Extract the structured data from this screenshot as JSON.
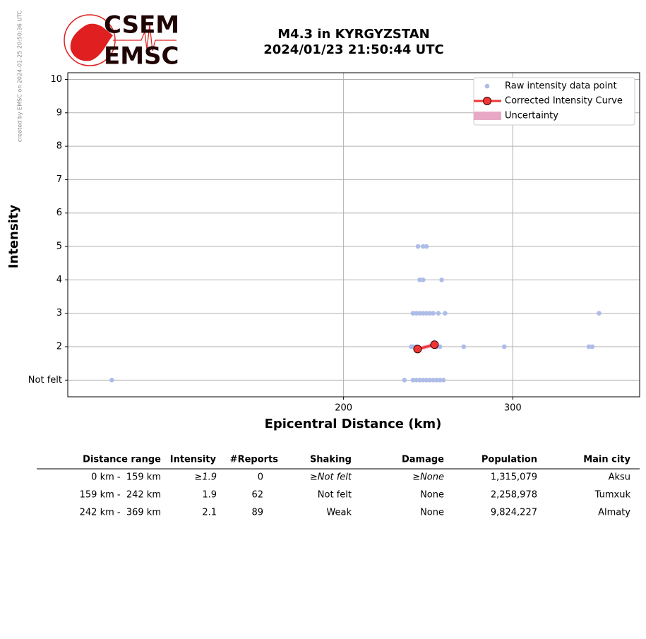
{
  "credit": "created by EMSC on 2024-01-25 20:50:36 UTC",
  "logo": {
    "line1": "CSEM",
    "line2": "EMSC"
  },
  "chart_data": {
    "type": "scatter",
    "title": "M4.3 in KYRGYZSTAN",
    "subtitle": "2024/01/23 21:50:44 UTC",
    "x_label": "Epicentral Distance (km)",
    "y_label": "Intensity",
    "xlim": [
      37,
      375
    ],
    "xticks": [
      200,
      300
    ],
    "ylim": [
      0.5,
      10.2
    ],
    "yticks": [
      {
        "value": 1,
        "label": "Not felt"
      },
      2,
      3,
      4,
      5,
      6,
      7,
      8,
      9,
      10
    ],
    "grid": true,
    "legend": "upper right",
    "series": [
      {
        "name": "Raw intensity data point",
        "color": "#aebce8",
        "x": [
          63,
          236,
          241,
          243,
          245,
          247,
          249,
          251,
          253,
          255,
          257,
          259,
          240,
          241,
          243,
          255,
          257,
          271,
          295,
          345,
          347,
          241,
          243,
          245,
          247,
          249,
          251,
          253,
          256,
          260,
          351,
          245,
          247,
          258,
          244,
          247,
          249
        ],
        "values": [
          1,
          1,
          1,
          1,
          1,
          1,
          1,
          1,
          1,
          1,
          1,
          1,
          2,
          2,
          2,
          2,
          2,
          2,
          2,
          2,
          2,
          3,
          3,
          3,
          3,
          3,
          3,
          3,
          3,
          3,
          3,
          4,
          4,
          4,
          5,
          5,
          5
        ]
      },
      {
        "name": "Corrected Intensity Curve",
        "color": "#f03535",
        "x": [
          243.75,
          253.75
        ],
        "values": [
          1.93,
          2.06
        ]
      },
      {
        "name": "Uncertainty",
        "color": "#e8a9c6",
        "x": [
          243.75,
          253.75
        ],
        "lower": [
          1.87,
          2.0
        ],
        "upper": [
          1.99,
          2.12
        ]
      }
    ]
  },
  "table": {
    "columns": [
      "Distance range",
      "Intensity",
      "#Reports",
      "Shaking",
      "Damage",
      "Population",
      "Main city"
    ],
    "rows": [
      [
        "0 km -  159 km",
        "≥1.9",
        "0",
        "≥Not felt",
        "≥None",
        "1,315,079",
        "Aksu"
      ],
      [
        "159 km -  242 km",
        "1.9",
        "62",
        "Not felt",
        "None",
        "2,258,978",
        "Tumxuk"
      ],
      [
        "242 km -  369 km",
        "2.1",
        "89",
        "Weak",
        "None",
        "9,824,227",
        "Almaty"
      ]
    ]
  }
}
